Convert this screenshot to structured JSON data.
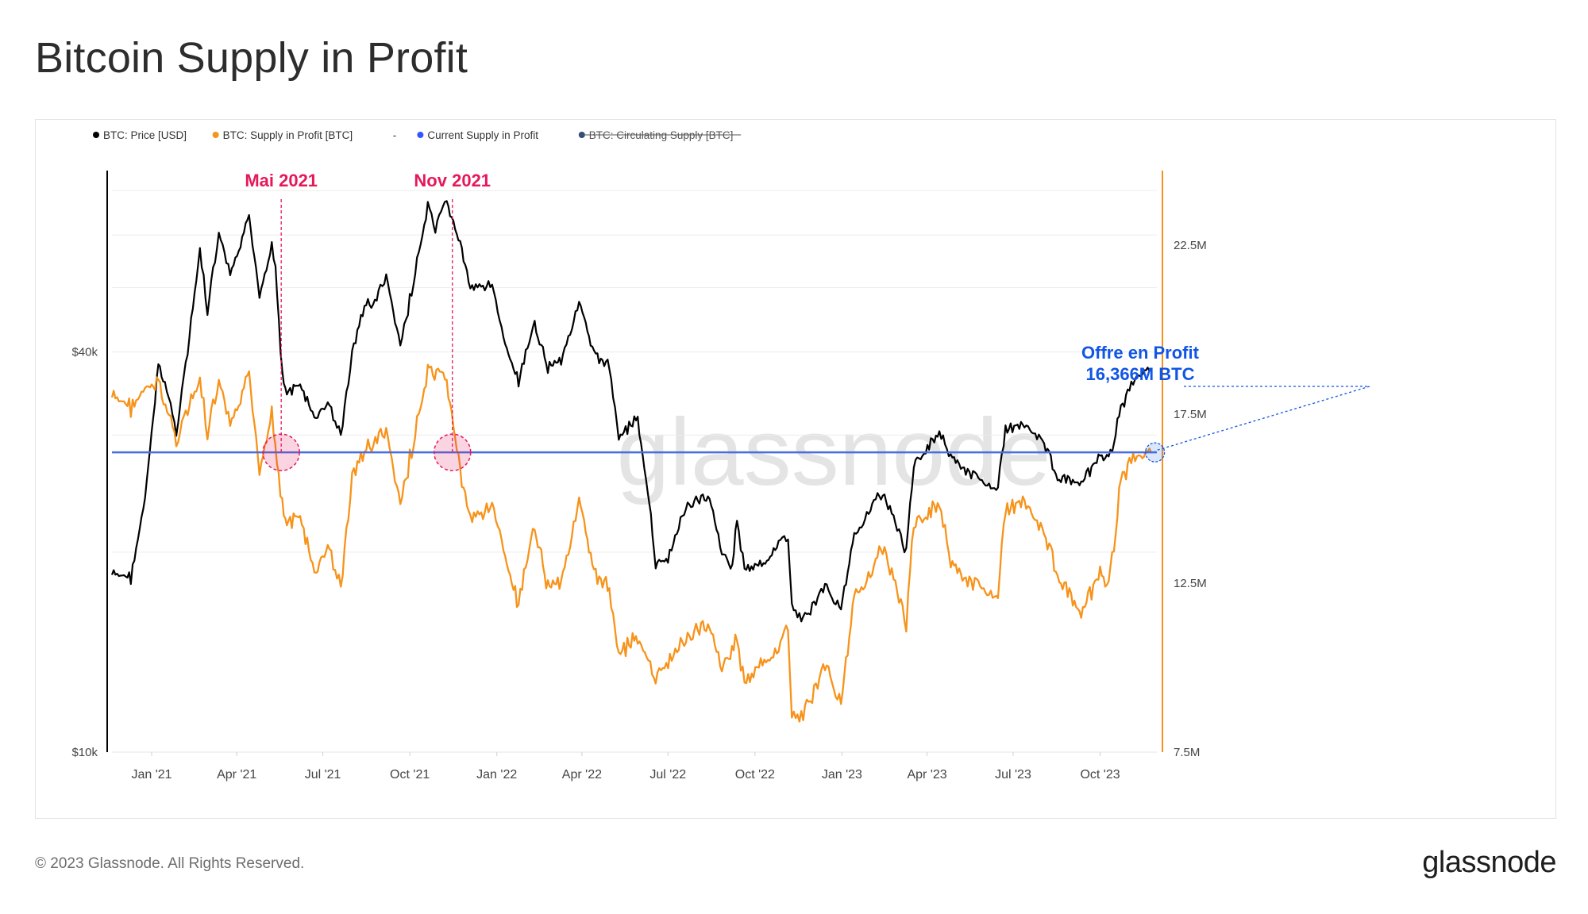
{
  "title": "Bitcoin Supply in Profit",
  "footer": {
    "copyright": "© 2023 Glassnode. All Rights Reserved.",
    "logo": "glassnode"
  },
  "watermark": "glassnode",
  "colors": {
    "price": "#000000",
    "supply": "#f7931a",
    "current": "#4a6fdc",
    "circulating": "#2f4b7c",
    "event": "#e6185a",
    "annotation": "#1155e6",
    "right_axis": "#f7931a"
  },
  "chart_data": {
    "type": "line",
    "x_range": [
      "2020-11-20",
      "2023-11-30"
    ],
    "x_ticks": [
      "Jan '21",
      "Apr '21",
      "Jul '21",
      "Oct '21",
      "Jan '22",
      "Apr '22",
      "Jul '22",
      "Oct '22",
      "Jan '23",
      "Apr '23",
      "Jul '23",
      "Oct '23"
    ],
    "left_axis": {
      "scale": "log",
      "range": [
        10000,
        75000
      ],
      "tick_labels": [
        "$10k",
        "$40k"
      ]
    },
    "right_axis": {
      "scale": "linear",
      "range": [
        7500000,
        24700000
      ],
      "tick_labels": [
        "7.5M",
        "12.5M",
        "17.5M",
        "22.5M"
      ]
    },
    "legend": {
      "placement": "top-left",
      "items": [
        {
          "label": "BTC: Price [USD]",
          "color": "#000000",
          "struck": false
        },
        {
          "label": "BTC: Supply in Profit [BTC]",
          "color": "#f7931a",
          "struck": false
        },
        {
          "label": "-",
          "color": "",
          "struck": false
        },
        {
          "label": "Current Supply in Profit",
          "color": "#3355ff",
          "struck": false
        },
        {
          "label": "BTC: Circulating Supply [BTC]",
          "color": "#2f4b7c",
          "struck": true
        }
      ]
    },
    "series": [
      {
        "name": "BTC: Price [USD]",
        "axis": "left",
        "color": "#000000",
        "points": [
          [
            "2020-11-20",
            18500
          ],
          [
            "2020-12-10",
            18300
          ],
          [
            "2020-12-25",
            24000
          ],
          [
            "2021-01-08",
            38000
          ],
          [
            "2021-01-15",
            36000
          ],
          [
            "2021-01-27",
            30500
          ],
          [
            "2021-02-08",
            40000
          ],
          [
            "2021-02-21",
            57000
          ],
          [
            "2021-03-01",
            46000
          ],
          [
            "2021-03-13",
            60000
          ],
          [
            "2021-03-25",
            52000
          ],
          [
            "2021-04-14",
            63500
          ],
          [
            "2021-04-25",
            49000
          ],
          [
            "2021-05-08",
            58000
          ],
          [
            "2021-05-12",
            54000
          ],
          [
            "2021-05-19",
            37000
          ],
          [
            "2021-05-24",
            34500
          ],
          [
            "2021-06-07",
            35800
          ],
          [
            "2021-06-22",
            31600
          ],
          [
            "2021-07-08",
            33500
          ],
          [
            "2021-07-20",
            29800
          ],
          [
            "2021-08-01",
            40000
          ],
          [
            "2021-08-14",
            47000
          ],
          [
            "2021-08-25",
            47500
          ],
          [
            "2021-09-06",
            52000
          ],
          [
            "2021-09-21",
            40500
          ],
          [
            "2021-10-01",
            48000
          ],
          [
            "2021-10-20",
            66000
          ],
          [
            "2021-10-28",
            61000
          ],
          [
            "2021-11-09",
            67500
          ],
          [
            "2021-11-25",
            57000
          ],
          [
            "2021-12-04",
            49500
          ],
          [
            "2021-12-27",
            51000
          ],
          [
            "2022-01-08",
            41600
          ],
          [
            "2022-01-24",
            36000
          ],
          [
            "2022-02-10",
            44000
          ],
          [
            "2022-02-24",
            38000
          ],
          [
            "2022-03-10",
            39000
          ],
          [
            "2022-03-29",
            47500
          ],
          [
            "2022-04-12",
            40000
          ],
          [
            "2022-04-30",
            38000
          ],
          [
            "2022-05-10",
            30000
          ],
          [
            "2022-05-30",
            31800
          ],
          [
            "2022-06-13",
            22500
          ],
          [
            "2022-06-18",
            19000
          ],
          [
            "2022-07-01",
            19500
          ],
          [
            "2022-07-20",
            23500
          ],
          [
            "2022-08-14",
            24300
          ],
          [
            "2022-08-27",
            20000
          ],
          [
            "2022-09-07",
            19000
          ],
          [
            "2022-09-12",
            22300
          ],
          [
            "2022-09-20",
            18800
          ],
          [
            "2022-10-10",
            19100
          ],
          [
            "2022-10-26",
            20700
          ],
          [
            "2022-11-05",
            21000
          ],
          [
            "2022-11-09",
            16500
          ],
          [
            "2022-11-21",
            15800
          ],
          [
            "2022-12-14",
            17800
          ],
          [
            "2022-12-31",
            16500
          ],
          [
            "2023-01-14",
            21000
          ],
          [
            "2023-02-02",
            23700
          ],
          [
            "2023-02-15",
            24500
          ],
          [
            "2023-03-10",
            20000
          ],
          [
            "2023-03-18",
            27000
          ],
          [
            "2023-04-14",
            30400
          ],
          [
            "2023-04-26",
            28000
          ],
          [
            "2023-05-12",
            26300
          ],
          [
            "2023-06-15",
            25000
          ],
          [
            "2023-06-23",
            30500
          ],
          [
            "2023-07-13",
            31300
          ],
          [
            "2023-08-01",
            29500
          ],
          [
            "2023-08-17",
            26000
          ],
          [
            "2023-09-11",
            25200
          ],
          [
            "2023-10-01",
            27900
          ],
          [
            "2023-10-10",
            27400
          ],
          [
            "2023-10-23",
            33000
          ],
          [
            "2023-11-01",
            35000
          ],
          [
            "2023-11-09",
            36700
          ],
          [
            "2023-11-24",
            37800
          ]
        ]
      },
      {
        "name": "BTC: Supply in Profit [BTC]",
        "axis": "right",
        "color": "#f7931a",
        "points": [
          [
            "2020-11-20",
            18000000
          ],
          [
            "2020-12-10",
            17700000
          ],
          [
            "2020-12-25",
            18200000
          ],
          [
            "2021-01-08",
            18400000
          ],
          [
            "2021-01-27",
            16800000
          ],
          [
            "2021-02-08",
            17600000
          ],
          [
            "2021-02-21",
            18500000
          ],
          [
            "2021-03-01",
            16900000
          ],
          [
            "2021-03-13",
            18400000
          ],
          [
            "2021-03-25",
            17100000
          ],
          [
            "2021-04-14",
            18600000
          ],
          [
            "2021-04-25",
            15900000
          ],
          [
            "2021-05-08",
            17600000
          ],
          [
            "2021-05-19",
            14800000
          ],
          [
            "2021-05-24",
            14200000
          ],
          [
            "2021-06-07",
            14500000
          ],
          [
            "2021-06-22",
            12700000
          ],
          [
            "2021-07-08",
            13600000
          ],
          [
            "2021-07-20",
            12300000
          ],
          [
            "2021-08-01",
            15700000
          ],
          [
            "2021-08-14",
            16400000
          ],
          [
            "2021-09-06",
            17000000
          ],
          [
            "2021-09-21",
            14700000
          ],
          [
            "2021-10-01",
            16200000
          ],
          [
            "2021-10-20",
            18700000
          ],
          [
            "2021-11-09",
            18500000
          ],
          [
            "2021-11-25",
            15500000
          ],
          [
            "2021-12-04",
            14300000
          ],
          [
            "2021-12-27",
            14900000
          ],
          [
            "2022-01-08",
            13400000
          ],
          [
            "2022-01-24",
            11800000
          ],
          [
            "2022-02-10",
            14200000
          ],
          [
            "2022-02-24",
            12400000
          ],
          [
            "2022-03-10",
            12600000
          ],
          [
            "2022-03-29",
            14900000
          ],
          [
            "2022-04-12",
            12900000
          ],
          [
            "2022-04-30",
            12300000
          ],
          [
            "2022-05-10",
            10500000
          ],
          [
            "2022-05-30",
            10900000
          ],
          [
            "2022-06-18",
            9600000
          ],
          [
            "2022-07-20",
            10900000
          ],
          [
            "2022-08-14",
            11300000
          ],
          [
            "2022-08-27",
            10000000
          ],
          [
            "2022-09-12",
            10800000
          ],
          [
            "2022-09-20",
            9500000
          ],
          [
            "2022-10-26",
            10600000
          ],
          [
            "2022-11-05",
            11200000
          ],
          [
            "2022-11-09",
            8500000
          ],
          [
            "2022-11-21",
            8600000
          ],
          [
            "2022-12-14",
            10100000
          ],
          [
            "2022-12-31",
            9000000
          ],
          [
            "2023-01-14",
            12000000
          ],
          [
            "2023-02-15",
            13600000
          ],
          [
            "2023-03-10",
            11300000
          ],
          [
            "2023-03-18",
            14200000
          ],
          [
            "2023-04-14",
            14900000
          ],
          [
            "2023-04-26",
            13200000
          ],
          [
            "2023-05-12",
            12500000
          ],
          [
            "2023-06-15",
            12200000
          ],
          [
            "2023-06-23",
            14600000
          ],
          [
            "2023-07-13",
            15000000
          ],
          [
            "2023-08-01",
            14100000
          ],
          [
            "2023-08-17",
            12800000
          ],
          [
            "2023-09-11",
            11500000
          ],
          [
            "2023-10-01",
            12800000
          ],
          [
            "2023-10-10",
            12300000
          ],
          [
            "2023-10-23",
            15600000
          ],
          [
            "2023-11-01",
            16000000
          ],
          [
            "2023-11-09",
            16200000
          ],
          [
            "2023-11-24",
            16366000
          ]
        ]
      },
      {
        "name": "Current Supply in Profit",
        "axis": "right",
        "color": "#4a6fdc",
        "constant": 16366000
      }
    ],
    "events": [
      {
        "label": "Mai 2021",
        "date": "2021-05-18"
      },
      {
        "label": "Nov 2021",
        "date": "2021-11-15"
      }
    ],
    "annotation": {
      "line1": "Offre en Profit",
      "line2": "16,366M BTC",
      "date": "2023-11-28",
      "value": 16366000
    }
  }
}
